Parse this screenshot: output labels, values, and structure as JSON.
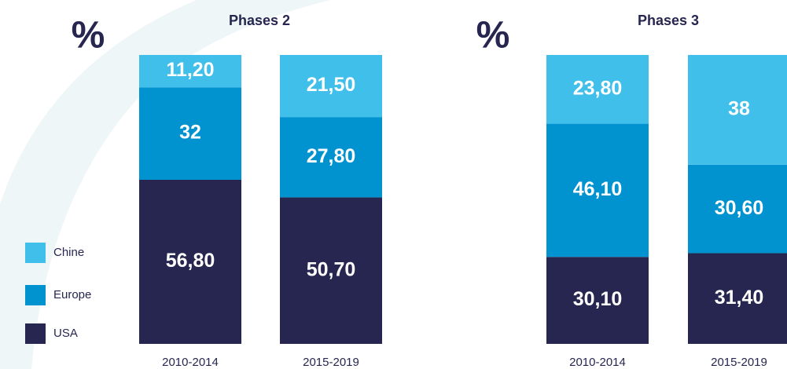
{
  "chart_data": [
    {
      "type": "stacked_bar",
      "title": "Phases 2",
      "y_label": "%",
      "categories": [
        "2010-2014",
        "2015-2019"
      ],
      "series": [
        {
          "name": "Chine",
          "color": "#40bfea",
          "values": [
            11.2,
            21.5
          ],
          "value_labels": [
            "11,20",
            "21,50"
          ]
        },
        {
          "name": "Europe",
          "color": "#0192d0",
          "values": [
            32,
            27.8
          ],
          "value_labels": [
            "32",
            "27,80"
          ]
        },
        {
          "name": "USA",
          "color": "#262650",
          "values": [
            56.8,
            50.7
          ],
          "value_labels": [
            "56,80",
            "50,70"
          ]
        }
      ]
    },
    {
      "type": "stacked_bar",
      "title": "Phases 3",
      "y_label": "%",
      "categories": [
        "2010-2014",
        "2015-2019"
      ],
      "series": [
        {
          "name": "Chine",
          "color": "#40bfea",
          "values": [
            23.8,
            38
          ],
          "value_labels": [
            "23,80",
            "38"
          ]
        },
        {
          "name": "Europe",
          "color": "#0192d0",
          "values": [
            46.1,
            30.6
          ],
          "value_labels": [
            "46,10",
            "30,60"
          ]
        },
        {
          "name": "USA",
          "color": "#262650",
          "values": [
            30.1,
            31.4
          ],
          "value_labels": [
            "30,10",
            "31,40"
          ]
        }
      ]
    }
  ]
}
